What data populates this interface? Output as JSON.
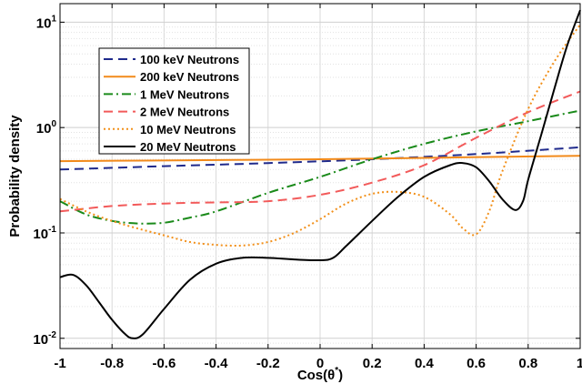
{
  "chart_data": {
    "type": "line",
    "xlabel": "Cos(θ*)",
    "ylabel": "Probability density",
    "xlim": [
      -1,
      1
    ],
    "ylim": [
      0.008,
      15
    ],
    "yscale": "log",
    "grid": true,
    "legend_position": "top-left",
    "x_ticks": [
      "-1",
      "-0.8",
      "-0.6",
      "-0.4",
      "-0.2",
      "0",
      "0.2",
      "0.4",
      "0.6",
      "0.8",
      "1"
    ],
    "y_ticks": [
      {
        "value": 0.01,
        "base": "10",
        "exp": "-2"
      },
      {
        "value": 0.1,
        "base": "10",
        "exp": "-1"
      },
      {
        "value": 1,
        "base": "10",
        "exp": "0"
      },
      {
        "value": 10,
        "base": "10",
        "exp": "1"
      }
    ],
    "series": [
      {
        "name": "100 keV Neutrons",
        "color": "#1f2a8c",
        "dash": "10,6",
        "x": [
          -1,
          -0.6,
          -0.2,
          0.2,
          0.6,
          1.0
        ],
        "y": [
          0.4,
          0.43,
          0.46,
          0.5,
          0.56,
          0.65
        ]
      },
      {
        "name": "200 keV Neutrons",
        "color": "#f28a1a",
        "dash": "",
        "x": [
          -1,
          -0.5,
          0,
          0.5,
          1.0
        ],
        "y": [
          0.48,
          0.49,
          0.5,
          0.52,
          0.54
        ]
      },
      {
        "name": "1 MeV Neutrons",
        "color": "#1a8a1a",
        "dash": "10,4,2,4",
        "x": [
          -1,
          -0.9,
          -0.8,
          -0.7,
          -0.6,
          -0.5,
          -0.4,
          -0.2,
          0,
          0.2,
          0.4,
          0.6,
          0.8,
          1.0
        ],
        "y": [
          0.2,
          0.15,
          0.13,
          0.123,
          0.125,
          0.14,
          0.16,
          0.24,
          0.34,
          0.5,
          0.7,
          0.92,
          1.15,
          1.45
        ]
      },
      {
        "name": "2 MeV Neutrons",
        "color": "#f25a5a",
        "dash": "10,6",
        "x": [
          -1,
          -0.8,
          -0.6,
          -0.4,
          -0.2,
          0,
          0.2,
          0.4,
          0.6,
          0.8,
          1.0
        ],
        "y": [
          0.16,
          0.18,
          0.19,
          0.195,
          0.2,
          0.23,
          0.3,
          0.44,
          0.8,
          1.4,
          2.2
        ]
      },
      {
        "name": "10 MeV Neutrons",
        "color": "#f2901a",
        "dash": "2,3",
        "x": [
          -1,
          -0.9,
          -0.8,
          -0.7,
          -0.6,
          -0.5,
          -0.4,
          -0.3,
          -0.2,
          -0.1,
          0,
          0.1,
          0.2,
          0.3,
          0.4,
          0.5,
          0.55,
          0.6,
          0.65,
          0.7,
          0.8,
          0.9,
          1.0
        ],
        "y": [
          0.21,
          0.16,
          0.13,
          0.11,
          0.095,
          0.082,
          0.077,
          0.076,
          0.082,
          0.1,
          0.135,
          0.19,
          0.235,
          0.245,
          0.22,
          0.15,
          0.11,
          0.097,
          0.16,
          0.38,
          1.5,
          4.2,
          9.5
        ]
      },
      {
        "name": "20 MeV Neutrons",
        "color": "#000000",
        "dash": "",
        "x": [
          -1,
          -0.95,
          -0.9,
          -0.85,
          -0.8,
          -0.75,
          -0.72,
          -0.68,
          -0.6,
          -0.5,
          -0.4,
          -0.3,
          -0.2,
          -0.1,
          0,
          0.05,
          0.1,
          0.2,
          0.3,
          0.4,
          0.5,
          0.55,
          0.6,
          0.65,
          0.7,
          0.75,
          0.78,
          0.8,
          0.85,
          0.9,
          0.95,
          1.0
        ],
        "y": [
          0.038,
          0.04,
          0.032,
          0.022,
          0.015,
          0.011,
          0.01,
          0.011,
          0.019,
          0.036,
          0.051,
          0.058,
          0.058,
          0.056,
          0.055,
          0.058,
          0.075,
          0.13,
          0.22,
          0.34,
          0.44,
          0.46,
          0.42,
          0.31,
          0.21,
          0.165,
          0.2,
          0.32,
          0.85,
          2.3,
          6.0,
          13.0
        ]
      }
    ]
  }
}
